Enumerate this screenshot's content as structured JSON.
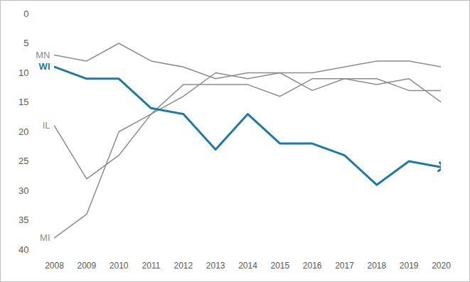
{
  "chart_data": {
    "type": "line",
    "x": [
      2008,
      2009,
      2010,
      2011,
      2012,
      2013,
      2014,
      2015,
      2016,
      2017,
      2018,
      2019,
      2020
    ],
    "xlim": [
      2008,
      2020
    ],
    "xticks": [
      2008,
      2009,
      2010,
      2011,
      2012,
      2013,
      2014,
      2015,
      2016,
      2017,
      2018,
      2019,
      2020
    ],
    "ylim": [
      40,
      0
    ],
    "yticks": [
      0,
      5,
      10,
      15,
      20,
      25,
      30,
      35,
      40
    ],
    "grid": false,
    "series": [
      {
        "name": "MN",
        "color": "#8c8c8c",
        "values": [
          7,
          8,
          5,
          8,
          9,
          11,
          10,
          10,
          10,
          9,
          8,
          8,
          9
        ]
      },
      {
        "name": "IL",
        "color": "#8c8c8c",
        "values": [
          19,
          28,
          24,
          17,
          12,
          12,
          12,
          14,
          11,
          11,
          12,
          11,
          15
        ]
      },
      {
        "name": "MI",
        "color": "#8c8c8c",
        "values": [
          38,
          34,
          20,
          17,
          14,
          10,
          11,
          10,
          13,
          11,
          11,
          13,
          13
        ]
      },
      {
        "name": "WI",
        "color": "#1b7ba6",
        "marker": "arrow",
        "values": [
          9,
          11,
          11,
          16,
          17,
          23,
          17,
          22,
          22,
          24,
          29,
          25,
          26
        ]
      }
    ]
  }
}
